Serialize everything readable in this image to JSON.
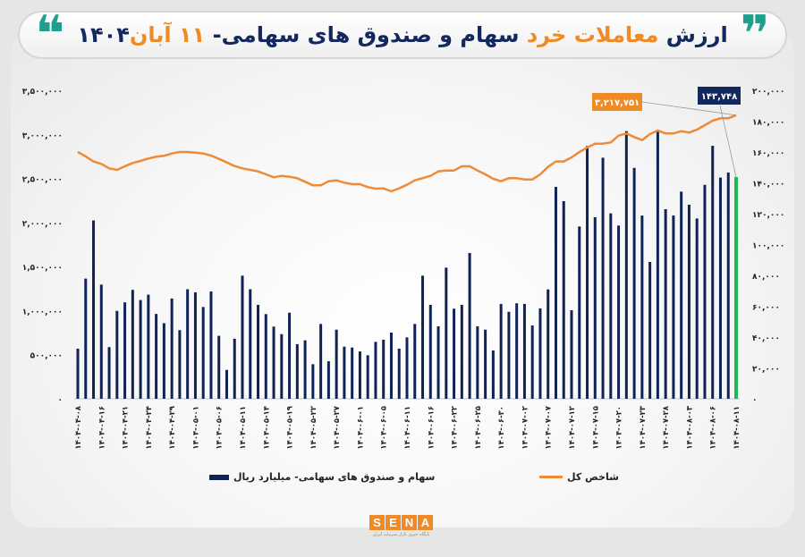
{
  "title": {
    "part1": "ارزش ",
    "part2": "معاملات خرد",
    "part3": " سهام و صندوق های سهامی- ",
    "part4": "۱۱ آبان",
    "part5": "۱۴۰۴",
    "quote_open": "❞",
    "quote_close": "❝",
    "quote_color": "#1fa08f",
    "highlight_color": "#f08a24"
  },
  "logo": {
    "letters": [
      "S",
      "E",
      "N",
      "A"
    ],
    "subtitle": "پایگاه خبری بازار سرمایه ایران"
  },
  "legend": {
    "bar_label": "سهام و صندوق های سهامی- میلیارد ریال",
    "line_label": "شاخص کل",
    "placement": "bottom"
  },
  "chart_data": {
    "type": "bar+line",
    "colors": {
      "bars": "#0f2357",
      "last_bar": "#1db954",
      "line": "#ef8a36"
    },
    "grid": false,
    "x_tick_labels": [
      "۱۴۰۴-۰۴-۰۸",
      "۱۴۰۴-۰۴-۱۶",
      "۱۴۰۴-۰۴-۲۱",
      "۱۴۰۴-۰۴-۲۴",
      "۱۴۰۴-۰۴-۲۹",
      "۱۴۰۴-۰۵-۰۱",
      "۱۴۰۴-۰۵-۰۶",
      "۱۴۰۴-۰۵-۱۱",
      "۱۴۰۴-۰۵-۱۴",
      "۱۴۰۴-۰۵-۱۹",
      "۱۴۰۴-۰۵-۲۲",
      "۱۴۰۴-۰۵-۲۷",
      "۱۴۰۴-۰۶-۰۱",
      "۱۴۰۴-۰۶-۰۵",
      "۱۴۰۴-۰۶-۱۱",
      "۱۴۰۴-۰۶-۱۶",
      "۱۴۰۴-۰۶-۲۲",
      "۱۴۰۴-۰۶-۲۵",
      "۱۴۰۴-۰۶-۳۰",
      "۱۴۰۴-۰۷-۰۲",
      "۱۴۰۴-۰۷-۰۷",
      "۱۴۰۴-۰۷-۱۲",
      "۱۴۰۴-۰۷-۱۵",
      "۱۴۰۴-۰۷-۲۰",
      "۱۴۰۴-۰۷-۲۳",
      "۱۴۰۴-۰۷-۲۸",
      "۱۴۰۴-۰۸-۰۳",
      "۱۴۰۴-۰۸-۰۶",
      "۱۴۰۴-۰۸-۱۱"
    ],
    "left_axis": {
      "range": [
        0,
        3500000
      ],
      "ticks": [
        "۰",
        "۵۰۰,۰۰۰",
        "۱,۰۰۰,۰۰۰",
        "۱,۵۰۰,۰۰۰",
        "۲,۰۰۰,۰۰۰",
        "۲,۵۰۰,۰۰۰",
        "۳,۰۰۰,۰۰۰",
        "۳,۵۰۰,۰۰۰"
      ],
      "series": "line"
    },
    "right_axis": {
      "range": [
        0,
        200000
      ],
      "ticks": [
        "۰",
        "۲۰,۰۰۰",
        "۴۰,۰۰۰",
        "۶۰,۰۰۰",
        "۸۰,۰۰۰",
        "۱۰۰,۰۰۰",
        "۱۲۰,۰۰۰",
        "۱۴۰,۰۰۰",
        "۱۶۰,۰۰۰",
        "۱۸۰,۰۰۰",
        "۲۰۰,۰۰۰"
      ],
      "series": "bars"
    },
    "series": [
      {
        "name": "سهام و صندوق های سهامی- میلیارد ریال",
        "type": "bar",
        "axis": "right",
        "values": [
          32500,
          77900,
          115600,
          74000,
          33500,
          57000,
          62500,
          70600,
          64000,
          67500,
          55000,
          49000,
          65000,
          44500,
          71000,
          69000,
          59500,
          69600,
          40800,
          18700,
          38900,
          79800,
          71000,
          60900,
          54900,
          46800,
          41900,
          55800,
          35400,
          37900,
          22400,
          48500,
          24300,
          44800,
          33800,
          33200,
          30700,
          28200,
          36900,
          38300,
          42900,
          32500,
          39800,
          48500,
          79800,
          60900,
          47000,
          85000,
          58400,
          60900,
          94500,
          47000,
          44800,
          31300,
          61500,
          56400,
          61900,
          61500,
          47500,
          58600,
          70900,
          137400,
          128100,
          57400,
          111700,
          163900,
          117700,
          156300,
          120200,
          112300,
          173500,
          149700,
          118800,
          88700,
          173200,
          122900,
          118800,
          134300,
          125800,
          116900,
          138700,
          164000,
          143400,
          146700,
          143748
        ]
      },
      {
        "name": "شاخص کل",
        "type": "line",
        "axis": "left",
        "values": [
          2800000,
          2749000,
          2692000,
          2665000,
          2614000,
          2597000,
          2638000,
          2675000,
          2699000,
          2726000,
          2746000,
          2756000,
          2783000,
          2800000,
          2800000,
          2793000,
          2783000,
          2759000,
          2722000,
          2681000,
          2641000,
          2614000,
          2597000,
          2580000,
          2546000,
          2513000,
          2529000,
          2519000,
          2503000,
          2462000,
          2422000,
          2422000,
          2468000,
          2478000,
          2452000,
          2435000,
          2435000,
          2401000,
          2384000,
          2387000,
          2354000,
          2387000,
          2428000,
          2478000,
          2503000,
          2529000,
          2580000,
          2590000,
          2590000,
          2638000,
          2638000,
          2590000,
          2546000,
          2496000,
          2468000,
          2503000,
          2503000,
          2489000,
          2489000,
          2546000,
          2631000,
          2692000,
          2692000,
          2739000,
          2800000,
          2851000,
          2894000,
          2894000,
          2909000,
          2986000,
          3010000,
          2969000,
          2935000,
          3003000,
          3044000,
          3010000,
          3010000,
          3036000,
          3020000,
          3054000,
          3104000,
          3155000,
          3182000,
          3182000,
          3217751
        ]
      }
    ],
    "annotations": [
      {
        "series": "line",
        "point": "last",
        "text": "۳,۲۱۷,۷۵۱",
        "color": "#f08a24"
      },
      {
        "series": "bar",
        "point": "last",
        "text": "۱۴۳,۷۴۸",
        "color": "#13285c"
      }
    ]
  }
}
